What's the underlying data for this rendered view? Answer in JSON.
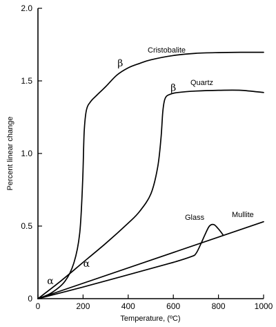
{
  "chart_data": {
    "type": "line",
    "xlabel": "Temperature, (ºC)",
    "ylabel": "Percent linear change",
    "xlim": [
      0,
      1000
    ],
    "ylim": [
      0,
      2.0
    ],
    "xticks": [
      "0",
      "200",
      "400",
      "600",
      "800",
      "1000"
    ],
    "yticks": [
      "0",
      "0.5",
      "1.0",
      "1.5",
      "2.0"
    ],
    "grid": false,
    "series": [
      {
        "name": "Cristobalite",
        "x": [
          0,
          60,
          120,
          160,
          185,
          198,
          205,
          215,
          235,
          260,
          300,
          350,
          400,
          450,
          500,
          600,
          700,
          800,
          900,
          1000
        ],
        "y": [
          0,
          0.04,
          0.12,
          0.25,
          0.45,
          0.8,
          1.15,
          1.3,
          1.36,
          1.4,
          1.46,
          1.54,
          1.59,
          1.62,
          1.645,
          1.675,
          1.69,
          1.695,
          1.697,
          1.697
        ]
      },
      {
        "name": "Quartz",
        "x": [
          0,
          100,
          200,
          300,
          400,
          450,
          500,
          530,
          545,
          553,
          560,
          570,
          590,
          620,
          700,
          800,
          900,
          1000
        ],
        "y": [
          0,
          0.12,
          0.25,
          0.38,
          0.52,
          0.6,
          0.72,
          0.9,
          1.1,
          1.28,
          1.36,
          1.395,
          1.41,
          1.42,
          1.43,
          1.435,
          1.435,
          1.42
        ]
      },
      {
        "name": "Glass",
        "x": [
          0,
          200,
          400,
          600,
          680,
          700,
          720,
          740,
          760,
          780,
          800,
          820
        ],
        "y": [
          0,
          0.08,
          0.165,
          0.25,
          0.29,
          0.31,
          0.37,
          0.44,
          0.5,
          0.51,
          0.48,
          0.44
        ]
      },
      {
        "name": "Mullite",
        "x": [
          0,
          1000
        ],
        "y": [
          0,
          0.53
        ]
      }
    ],
    "annotations": [
      {
        "text": "β",
        "x": 365,
        "y": 1.6
      },
      {
        "text": "β",
        "x": 600,
        "y": 1.43
      },
      {
        "text": "α",
        "x": 215,
        "y": 0.22
      },
      {
        "text": "α",
        "x": 55,
        "y": 0.1
      }
    ]
  }
}
